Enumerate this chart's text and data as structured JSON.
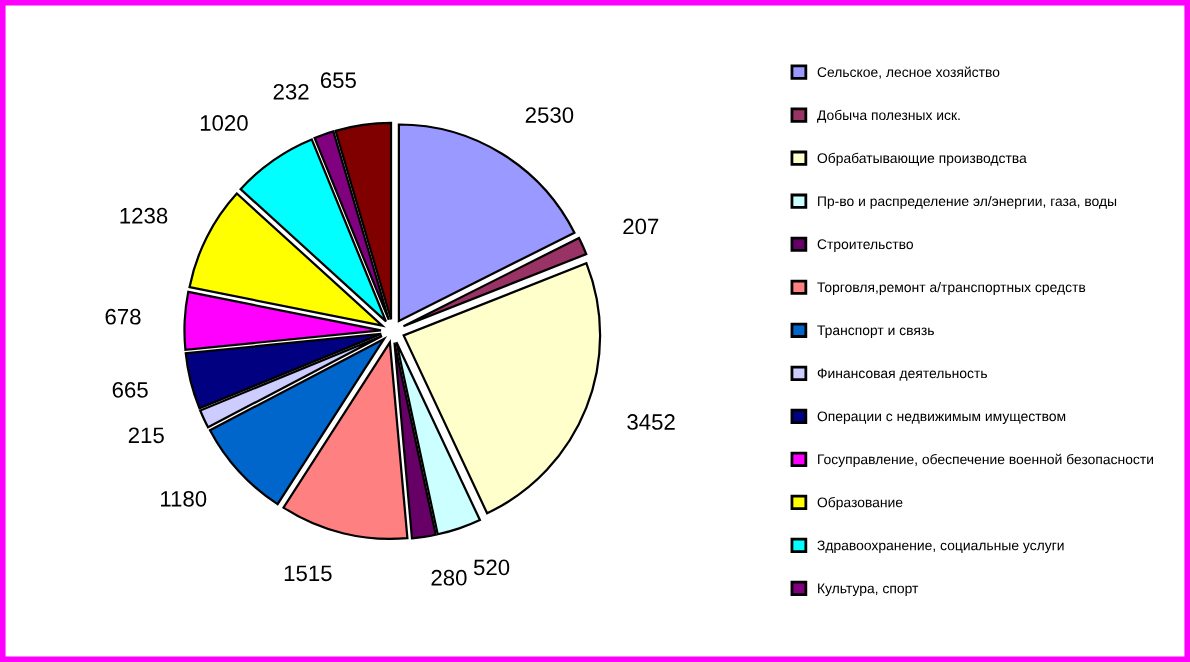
{
  "chart_data": {
    "type": "pie",
    "categories": [
      "Сельское, лесное хозяйство",
      "Добыча полезных иск.",
      "Обрабатывающие производства",
      "Пр-во и распределение эл/энергии, газа, воды",
      "Строительство",
      "Торговля,ремонт а/транспортных средств",
      "Транспорт и связь",
      "Финансовая деятельность",
      "Операции с недвижимым имуществом",
      "Госуправление, обеспечение военной безопасности",
      "Образование",
      "Здравоохранение, социальные услуги",
      "Культура, спорт",
      null
    ],
    "values": [
      2530,
      207,
      3452,
      520,
      280,
      1515,
      1180,
      215,
      665,
      678,
      1238,
      1020,
      232,
      655
    ],
    "colors": [
      "#9999ff",
      "#993366",
      "#ffffcc",
      "#ccffff",
      "#660066",
      "#ff8080",
      "#0066cc",
      "#ccccff",
      "#000080",
      "#ff00ff",
      "#ffff00",
      "#00ffff",
      "#800080",
      "#800000"
    ],
    "data_labels": true,
    "legend": "right"
  }
}
